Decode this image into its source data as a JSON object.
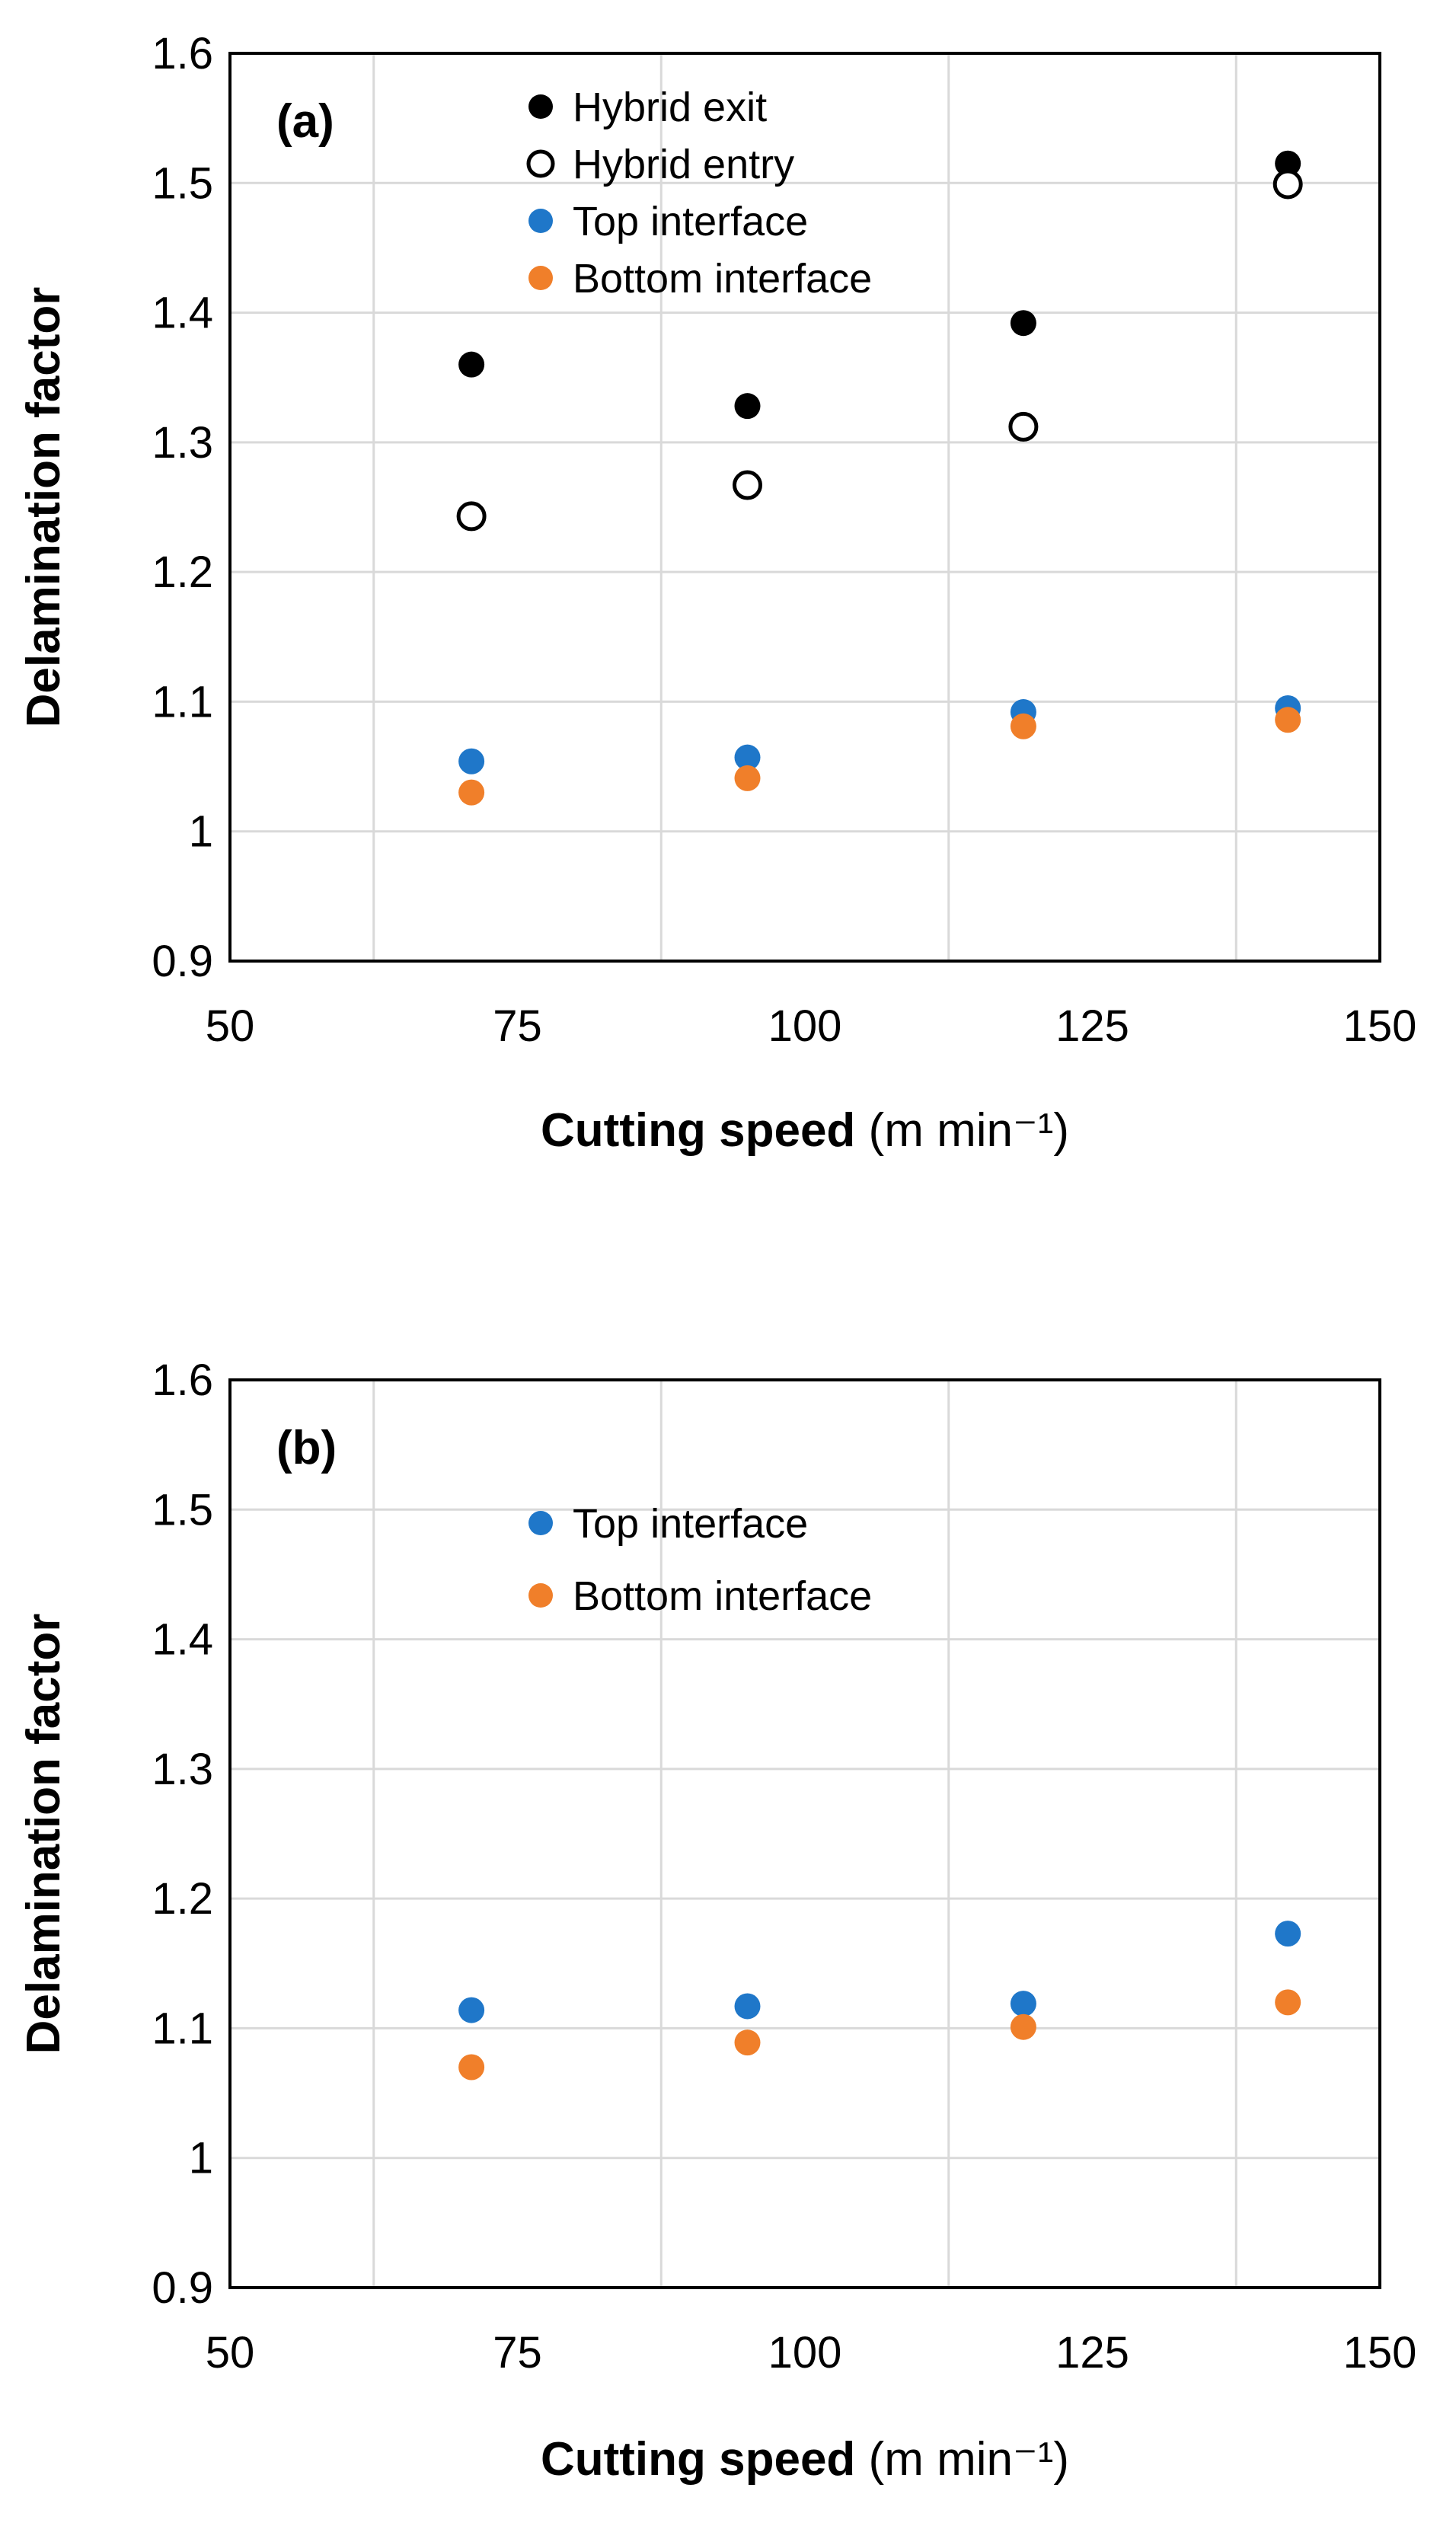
{
  "chart_data": [
    {
      "type": "scatter",
      "panel_label": "(a)",
      "xlabel": "Cutting speed",
      "xlabel_unit": "(m min⁻¹)",
      "ylabel": "Delamination factor",
      "xlim": [
        50,
        150
      ],
      "ylim": [
        0.9,
        1.6
      ],
      "x_ticks": [
        "50",
        "75",
        "100",
        "125",
        "150"
      ],
      "y_ticks": [
        "0.9",
        "1",
        "1.1",
        "1.2",
        "1.3",
        "1.4",
        "1.5",
        "1.6"
      ],
      "grid": true,
      "legend_position": "top-center",
      "x": [
        71,
        95,
        119,
        142
      ],
      "series": [
        {
          "name": "Hybrid exit",
          "color": "#000000",
          "marker": "filled-circle",
          "values": [
            1.36,
            1.328,
            1.392,
            1.515
          ]
        },
        {
          "name": "Hybrid entry",
          "color": "#000000",
          "marker": "hollow-circle",
          "values": [
            1.243,
            1.267,
            1.312,
            1.499
          ]
        },
        {
          "name": "Top interface",
          "color": "#1f77c9",
          "marker": "filled-circle",
          "values": [
            1.054,
            1.057,
            1.092,
            1.095
          ]
        },
        {
          "name": "Bottom interface",
          "color": "#f07f2a",
          "marker": "filled-circle",
          "values": [
            1.03,
            1.041,
            1.081,
            1.086
          ]
        }
      ]
    },
    {
      "type": "scatter",
      "panel_label": "(b)",
      "xlabel": "Cutting speed",
      "xlabel_unit": "(m min⁻¹)",
      "ylabel": "Delamination factor",
      "xlim": [
        50,
        150
      ],
      "ylim": [
        0.9,
        1.6
      ],
      "x_ticks": [
        "50",
        "75",
        "100",
        "125",
        "150"
      ],
      "y_ticks": [
        "0.9",
        "1",
        "1.1",
        "1.2",
        "1.3",
        "1.4",
        "1.5",
        "1.6"
      ],
      "grid": true,
      "legend_position": "top-center",
      "x": [
        71,
        95,
        119,
        142
      ],
      "series": [
        {
          "name": "Top interface",
          "color": "#1f77c9",
          "marker": "filled-circle",
          "values": [
            1.114,
            1.117,
            1.119,
            1.173
          ]
        },
        {
          "name": "Bottom interface",
          "color": "#f07f2a",
          "marker": "filled-circle",
          "values": [
            1.07,
            1.089,
            1.101,
            1.12
          ]
        }
      ]
    }
  ]
}
